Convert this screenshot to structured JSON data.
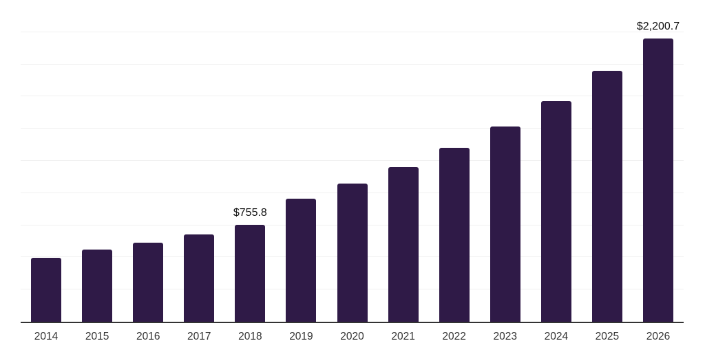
{
  "chart_data": {
    "type": "bar",
    "title": "",
    "xlabel": "",
    "ylabel": "",
    "categories": [
      "2014",
      "2015",
      "2016",
      "2017",
      "2018",
      "2019",
      "2020",
      "2021",
      "2022",
      "2023",
      "2024",
      "2025",
      "2026"
    ],
    "values": [
      497,
      559,
      614,
      680,
      755.8,
      958,
      1072,
      1204,
      1353,
      1519,
      1713,
      1950,
      2200.7
    ],
    "data_labels": [
      "",
      "",
      "",
      "",
      "$755.8",
      "",
      "",
      "",
      "",
      "",
      "",
      "",
      "$2,200.7"
    ],
    "ylim": [
      0,
      2500
    ],
    "gridline_interval": 250,
    "grid": true,
    "legend": false,
    "colors": {
      "bar": "#2f1a47",
      "gridline": "#f0f0f0",
      "axis_line": "#333333",
      "tick_label": "#333333",
      "data_label": "#111111",
      "background": "#ffffff"
    }
  }
}
